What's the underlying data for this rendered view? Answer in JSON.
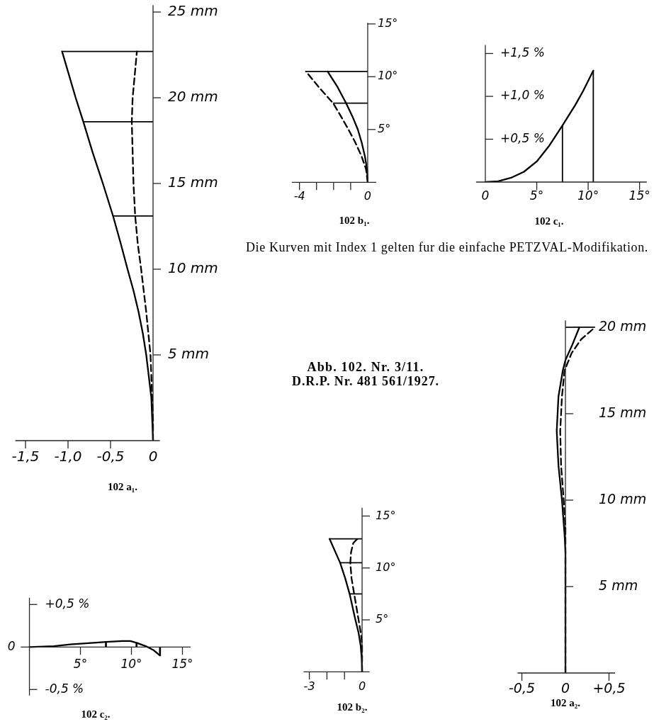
{
  "chart_data": [
    {
      "type": "line",
      "title": "102 a₁.",
      "xlim": [
        -1.62,
        0.08
      ],
      "xticks": [
        {
          "value": -1.5,
          "label": "-1,5"
        },
        {
          "value": -1,
          "label": "-1,0"
        },
        {
          "value": -0.5,
          "label": "-0,5"
        },
        0
      ],
      "ylim": [
        0,
        25.4
      ],
      "yticks": [
        {
          "value": 5,
          "label": "5 mm"
        },
        {
          "value": 10,
          "label": "10 mm"
        },
        {
          "value": 15,
          "label": "15 mm"
        },
        {
          "value": 20,
          "label": "20 mm"
        },
        {
          "value": 25,
          "label": "25 mm"
        }
      ],
      "series": [
        {
          "color": "#000000",
          "x": [
            0,
            -0.01,
            -0.02,
            -0.05,
            -0.08,
            -0.12,
            -0.17,
            -0.23,
            -0.3,
            -0.38,
            -0.47,
            -0.59,
            -0.71,
            -0.82,
            -0.91,
            -1.07
          ],
          "values": [
            0,
            1.25,
            2.5,
            3.75,
            5,
            6.25,
            7.5,
            8.75,
            10,
            11.5,
            13.1,
            15,
            16.8,
            18.6,
            20,
            22.7
          ]
        },
        {
          "color": "#000000",
          "line_style": "dashed",
          "x": [
            0,
            0,
            -0.01,
            -0.03,
            -0.08,
            -0.14,
            -0.18,
            -0.21,
            -0.23,
            -0.24,
            -0.25,
            -0.24,
            -0.19
          ],
          "values": [
            0,
            1.25,
            2.5,
            5,
            7.5,
            10,
            11.5,
            13.1,
            15,
            16.8,
            18.6,
            20,
            22.7
          ]
        },
        {
          "color": "#000000",
          "x": [
            -1.07,
            0
          ],
          "values": [
            22.7,
            22.7
          ]
        },
        {
          "color": "#000000",
          "x": [
            -0.82,
            0
          ],
          "values": [
            18.6,
            18.6
          ]
        },
        {
          "color": "#000000",
          "x": [
            -0.47,
            0
          ],
          "values": [
            13.1,
            13.1
          ]
        }
      ]
    },
    {
      "type": "line",
      "title": "102 b₁.",
      "xlim": [
        -4.45,
        0.5
      ],
      "xticks": [
        -4,
        {
          "value": -3,
          "label": null
        },
        {
          "value": -2,
          "label": null
        },
        {
          "value": -1,
          "label": null
        },
        0
      ],
      "ylim": [
        0,
        15.1
      ],
      "yticks": [
        {
          "value": 5,
          "label": "5°"
        },
        {
          "value": 10,
          "label": "10°"
        },
        {
          "value": 15,
          "label": "15°"
        }
      ],
      "series": [
        {
          "color": "#000000",
          "x": [
            0,
            -0.04,
            -0.17,
            -0.35,
            -0.58,
            -0.9,
            -1.27,
            -1.76,
            -2.35
          ],
          "values": [
            0,
            1.25,
            2.5,
            3.75,
            5,
            6.25,
            7.5,
            9,
            10.5
          ]
        },
        {
          "color": "#000000",
          "line_style": "dashed",
          "x": [
            0,
            -0.1,
            -0.37,
            -0.72,
            -1.13,
            -1.57,
            -2.03,
            -2.86,
            -3.62
          ],
          "values": [
            0,
            1.25,
            2.5,
            3.75,
            5,
            6.25,
            7.5,
            9,
            10.5
          ]
        },
        {
          "color": "#000000",
          "x": [
            -3.62,
            0
          ],
          "values": [
            10.5,
            10.5
          ]
        },
        {
          "color": "#000000",
          "x": [
            -2.03,
            0
          ],
          "values": [
            7.5,
            7.5
          ]
        }
      ]
    },
    {
      "type": "line",
      "title": "102 c₁.",
      "xlim": [
        -0.9,
        15.7
      ],
      "xticks": [
        0,
        {
          "value": 5,
          "label": "5°"
        },
        {
          "value": 10,
          "label": "10°"
        },
        {
          "value": 15,
          "label": "15°"
        }
      ],
      "ylim": [
        0,
        1.6
      ],
      "yticks": [
        {
          "value": 0.5,
          "label": "+0,5 %"
        },
        {
          "value": 1,
          "label": "+1,0 %"
        },
        {
          "value": 1.5,
          "label": "+1,5 %"
        }
      ],
      "series": [
        {
          "color": "#000000",
          "x": [
            0,
            1.25,
            2.5,
            3.75,
            5,
            6.25,
            7.5,
            8.75,
            9.5,
            10.5
          ],
          "values": [
            0,
            0.01,
            0.05,
            0.12,
            0.24,
            0.43,
            0.66,
            0.9,
            1.06,
            1.3
          ]
        },
        {
          "color": "#000000",
          "x": [
            7.5,
            7.5
          ],
          "values": [
            0,
            0.66
          ]
        },
        {
          "color": "#000000",
          "x": [
            10.5,
            10.5
          ],
          "values": [
            0,
            1.3
          ]
        }
      ]
    },
    {
      "type": "line",
      "title": "102 a₂.",
      "xlim": [
        -0.55,
        0.57
      ],
      "xticks": [
        {
          "value": -0.5,
          "label": "-0,5"
        },
        0,
        {
          "value": 0.5,
          "label": "+0,5"
        }
      ],
      "ylim": [
        0,
        20.4
      ],
      "yticks": [
        {
          "value": 5,
          "label": "5 mm"
        },
        {
          "value": 10,
          "label": "10 mm"
        },
        {
          "value": 15,
          "label": "15 mm"
        },
        {
          "value": 20,
          "label": "20 mm"
        }
      ],
      "series": [
        {
          "color": "#000000",
          "x": [
            0,
            0,
            -0.01,
            -0.04,
            -0.08,
            -0.1,
            -0.08,
            -0.03,
            0,
            0.08,
            0.16
          ],
          "values": [
            0,
            7,
            8,
            10,
            12,
            14,
            16,
            17.5,
            18.1,
            19,
            20
          ]
        },
        {
          "color": "#000000",
          "line_style": "dashed",
          "x": [
            0,
            0,
            -0.02,
            -0.05,
            -0.06,
            -0.04,
            -0.01,
            0.07,
            0.18,
            0.34
          ],
          "values": [
            0,
            8.5,
            10,
            12,
            14,
            16,
            17.5,
            18.5,
            19.3,
            20
          ]
        },
        {
          "color": "#000000",
          "x": [
            0,
            0.34
          ],
          "values": [
            20,
            20
          ]
        }
      ]
    },
    {
      "type": "line",
      "title": "102 b₂.",
      "xlim": [
        -3.33,
        0.43
      ],
      "xticks": [
        -3,
        {
          "value": -2,
          "label": null
        },
        {
          "value": -1,
          "label": null
        },
        0
      ],
      "ylim": [
        0,
        15.8
      ],
      "yticks": [
        {
          "value": 5,
          "label": "5°"
        },
        {
          "value": 10,
          "label": "10°"
        },
        {
          "value": 15,
          "label": "15°"
        }
      ],
      "series": [
        {
          "color": "#000000",
          "x": [
            0,
            -0.02,
            -0.08,
            -0.2,
            -0.38,
            -0.71,
            -0.96,
            -1.25,
            -1.85
          ],
          "values": [
            0,
            1.25,
            2.5,
            3.75,
            5,
            7.5,
            9,
            10.5,
            12.8
          ]
        },
        {
          "color": "#000000",
          "line_style": "dashed",
          "x": [
            0,
            0,
            -0.05,
            -0.2,
            -0.45,
            -0.6,
            -0.67,
            -0.63,
            -0.5,
            -0.27
          ],
          "values": [
            0,
            2.5,
            3.5,
            5,
            7.5,
            9,
            10.5,
            11.5,
            12.4,
            12.8
          ]
        },
        {
          "color": "#000000",
          "x": [
            -1.85,
            0
          ],
          "values": [
            12.8,
            12.8
          ]
        },
        {
          "color": "#000000",
          "x": [
            -1.25,
            0
          ],
          "values": [
            10.5,
            10.5
          ]
        },
        {
          "color": "#000000",
          "x": [
            -0.71,
            0
          ],
          "values": [
            7.5,
            7.5
          ]
        }
      ]
    },
    {
      "type": "line",
      "title": "102 c₂.",
      "xlim": [
        -0.85,
        15.8
      ],
      "xticks": [
        {
          "value": 5,
          "label": "5°"
        },
        {
          "value": 10,
          "label": "10°"
        },
        {
          "value": 15,
          "label": "15°"
        }
      ],
      "ylim": [
        -0.57,
        0.58
      ],
      "yticks": [
        {
          "value": -0.5,
          "label": "-0,5 %"
        },
        {
          "value": 0.5,
          "label": "+0,5 %"
        }
      ],
      "annotations": [
        {
          "text": "0",
          "x": 0,
          "y": 0
        }
      ],
      "series": [
        {
          "color": "#000000",
          "x": [
            0,
            2.4,
            4,
            6.3,
            7.5,
            9.1,
            9.9,
            10.5,
            11.4,
            12.2,
            12.8
          ],
          "values": [
            0,
            0.01,
            0.03,
            0.05,
            0.06,
            0.07,
            0.07,
            0.05,
            0.01,
            -0.04,
            -0.1
          ]
        },
        {
          "type": "bar",
          "color": "#000000",
          "x": [
            7.5,
            10.5,
            12.8
          ],
          "values": [
            0.06,
            0.05,
            -0.1
          ]
        }
      ]
    },
    {
      "type": "other",
      "annotations": [
        "Die Kurven mit Index 1 gelten fur die einfache PETZVAL-Modifikation.",
        "Abb. 102. Nr. 3/11.",
        "D.R.P. Nr. 481 561/1927."
      ]
    }
  ]
}
